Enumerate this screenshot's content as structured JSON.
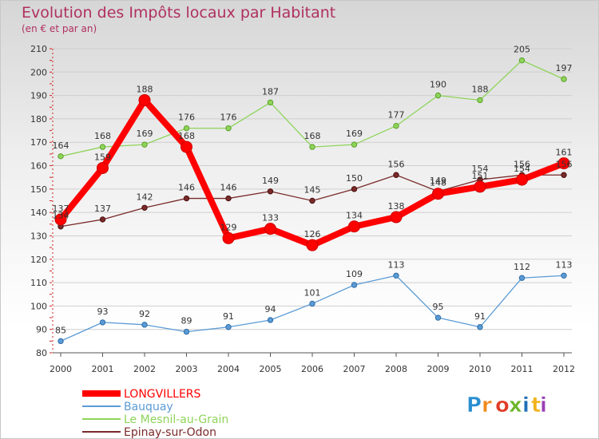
{
  "title": "Evolution des Impôts locaux par Habitant",
  "subtitle": "(en € et par an)",
  "logo_text": "Proxiti",
  "chart_data": {
    "type": "line",
    "title": "Evolution des Impôts locaux par Habitant",
    "subtitle": "(en € et par an)",
    "xlabel": "",
    "ylabel": "",
    "x": [
      "2000",
      "2001",
      "2002",
      "2003",
      "2004",
      "2005",
      "2006",
      "2007",
      "2008",
      "2009",
      "2010",
      "2011",
      "2012"
    ],
    "ylim": [
      80,
      210
    ],
    "yticks": [
      80,
      90,
      100,
      110,
      120,
      130,
      140,
      150,
      160,
      170,
      180,
      190,
      200,
      210
    ],
    "grid": "horizontal",
    "legend_position": "bottom-left",
    "series": [
      {
        "name": "LONGVILLERS",
        "color": "#ff0000",
        "values": [
          137,
          159,
          188,
          168,
          129,
          133,
          126,
          134,
          138,
          148,
          151,
          154,
          161
        ]
      },
      {
        "name": "Bauquay",
        "color": "#5b9bd5",
        "values": [
          85,
          93,
          92,
          89,
          91,
          94,
          101,
          109,
          113,
          95,
          91,
          112,
          113
        ]
      },
      {
        "name": "Le Mesnil-au-Grain",
        "color": "#8fd45a",
        "values": [
          164,
          168,
          169,
          176,
          176,
          187,
          168,
          169,
          177,
          190,
          188,
          205,
          197
        ]
      },
      {
        "name": "Epinay-sur-Odon",
        "color": "#7a2a2a",
        "values": [
          134,
          137,
          142,
          146,
          146,
          149,
          145,
          150,
          156,
          149,
          154,
          156,
          156
        ]
      }
    ]
  }
}
